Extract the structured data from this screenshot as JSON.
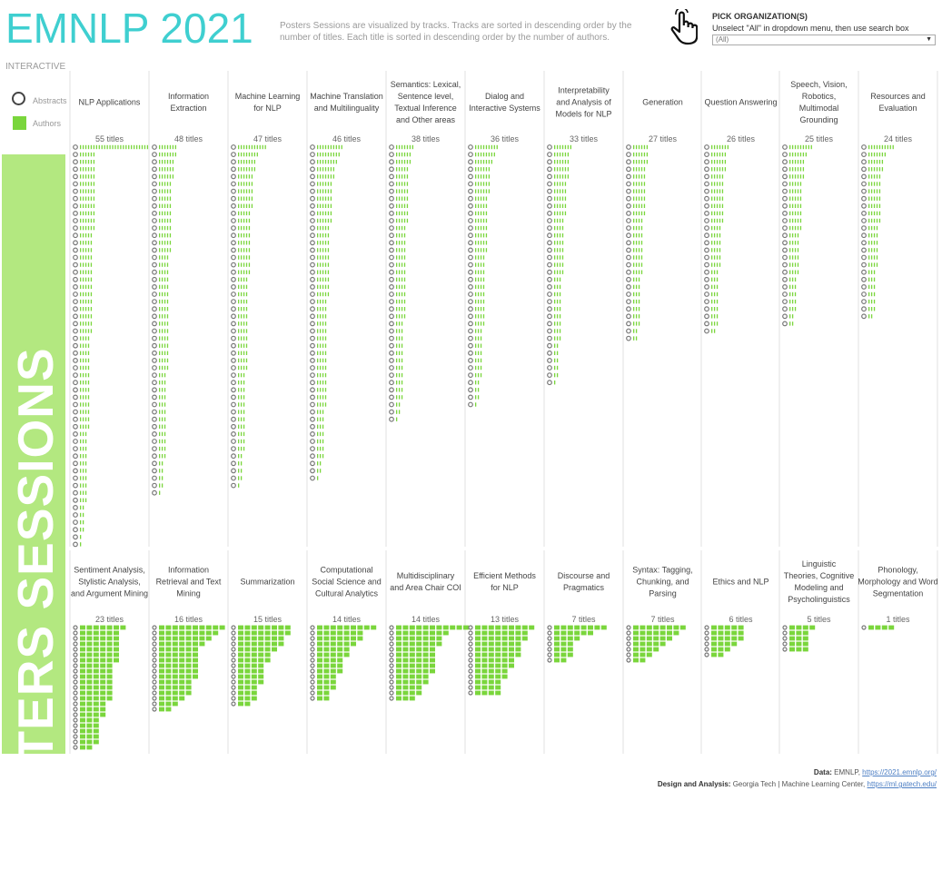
{
  "header": {
    "title": "EMNLP 2021",
    "subtitle": "Posters Sessions are visualized by tracks. Tracks are sorted in descending order by the number of titles. Each title is sorted in descending order by the number of authors."
  },
  "filter": {
    "pick_label": "PICK ORGANIZATION(S)",
    "hint": "Unselect \"All\" in dropdown menu, then use search box",
    "selected": "(All)",
    "icon": "hand-pointer-icon"
  },
  "sidebar": {
    "interactive_label": "INTERACTIVE",
    "banner_text": "POSTERS SESSIONS"
  },
  "legend": {
    "abstracts_label": "Abstracts",
    "authors_label": "Authors",
    "author_color": "#7ad63c",
    "abstract_color": "#777777"
  },
  "footer": {
    "data_label": "Data:",
    "data_text": "EMNLP,",
    "data_link": "https://2021.emnlp.org/",
    "design_label": "Design and Analysis:",
    "design_text": "Georgia Tech | Machine Learning Center,",
    "design_link": "https://ml.gatech.edu/"
  },
  "chart_data": {
    "type": "bar",
    "description_unit": "titles per track; each title row shows author count",
    "tracks": [
      {
        "name": "NLP Applications",
        "titles_label": "55 titles",
        "titles": 55,
        "authors": [
          26,
          6,
          6,
          6,
          6,
          6,
          6,
          6,
          6,
          6,
          6,
          6,
          5,
          5,
          5,
          5,
          5,
          5,
          5,
          5,
          5,
          5,
          5,
          5,
          5,
          5,
          4,
          4,
          4,
          4,
          4,
          4,
          4,
          4,
          4,
          4,
          4,
          4,
          4,
          3,
          3,
          3,
          3,
          3,
          3,
          3,
          3,
          3,
          3,
          2,
          2,
          2,
          2,
          1,
          1
        ]
      },
      {
        "name": "Information Extraction",
        "titles_label": "48 titles",
        "titles": 48,
        "authors": [
          7,
          7,
          6,
          6,
          6,
          5,
          5,
          5,
          5,
          5,
          5,
          5,
          5,
          5,
          5,
          4,
          4,
          4,
          4,
          4,
          4,
          4,
          4,
          4,
          4,
          4,
          4,
          4,
          4,
          4,
          4,
          3,
          3,
          3,
          3,
          3,
          3,
          3,
          3,
          3,
          3,
          3,
          3,
          2,
          2,
          2,
          2,
          1
        ]
      },
      {
        "name": "Machine Learning for NLP",
        "titles_label": "47 titles",
        "titles": 47,
        "authors": [
          11,
          8,
          7,
          7,
          6,
          6,
          6,
          6,
          6,
          5,
          5,
          5,
          5,
          5,
          5,
          5,
          5,
          5,
          4,
          4,
          4,
          4,
          4,
          4,
          4,
          4,
          4,
          4,
          4,
          4,
          4,
          3,
          3,
          3,
          3,
          3,
          3,
          3,
          3,
          3,
          3,
          3,
          2,
          2,
          2,
          2,
          1
        ]
      },
      {
        "name": "Machine Translation and Multilinguality",
        "titles_label": "46 titles",
        "titles": 46,
        "authors": [
          10,
          9,
          8,
          7,
          7,
          6,
          6,
          6,
          6,
          6,
          6,
          5,
          5,
          5,
          5,
          5,
          5,
          5,
          5,
          5,
          5,
          4,
          4,
          4,
          4,
          4,
          4,
          4,
          4,
          4,
          4,
          4,
          4,
          4,
          4,
          4,
          3,
          3,
          3,
          3,
          3,
          3,
          3,
          2,
          2,
          1
        ]
      },
      {
        "name": "Semantics: Lexical, Sentence level, Textual Inference and Other areas",
        "titles_label": "38 titles",
        "titles": 38,
        "authors": [
          7,
          6,
          6,
          5,
          5,
          5,
          5,
          5,
          5,
          5,
          5,
          4,
          4,
          4,
          4,
          4,
          4,
          4,
          4,
          4,
          4,
          4,
          4,
          4,
          3,
          3,
          3,
          3,
          3,
          3,
          3,
          3,
          3,
          3,
          3,
          2,
          2,
          1
        ]
      },
      {
        "name": "Dialog and Interactive Systems",
        "titles_label": "36 titles",
        "titles": 36,
        "authors": [
          9,
          8,
          7,
          6,
          6,
          6,
          6,
          5,
          5,
          5,
          5,
          5,
          5,
          5,
          5,
          4,
          4,
          4,
          4,
          4,
          4,
          4,
          4,
          4,
          4,
          3,
          3,
          3,
          3,
          3,
          3,
          3,
          2,
          2,
          2,
          1
        ]
      },
      {
        "name": "Interpretability and Analysis of Models for NLP",
        "titles_label": "33 titles",
        "titles": 33,
        "authors": [
          7,
          6,
          6,
          6,
          6,
          5,
          5,
          5,
          5,
          5,
          4,
          4,
          4,
          4,
          4,
          4,
          4,
          4,
          3,
          3,
          3,
          3,
          3,
          3,
          3,
          3,
          3,
          2,
          2,
          2,
          2,
          2,
          1
        ]
      },
      {
        "name": "Generation",
        "titles_label": "27 titles",
        "titles": 27,
        "authors": [
          6,
          6,
          6,
          5,
          5,
          5,
          5,
          5,
          5,
          5,
          4,
          4,
          4,
          4,
          4,
          4,
          4,
          4,
          3,
          3,
          3,
          3,
          3,
          3,
          3,
          2,
          2
        ]
      },
      {
        "name": "Question Answering",
        "titles_label": "26 titles",
        "titles": 26,
        "authors": [
          7,
          6,
          6,
          6,
          5,
          5,
          5,
          5,
          5,
          5,
          5,
          4,
          4,
          4,
          4,
          4,
          4,
          3,
          3,
          3,
          3,
          3,
          3,
          3,
          3,
          2
        ]
      },
      {
        "name": "Speech, Vision, Robotics, Multimodal Grounding",
        "titles_label": "25 titles",
        "titles": 25,
        "authors": [
          9,
          7,
          6,
          6,
          6,
          5,
          5,
          5,
          5,
          5,
          5,
          5,
          4,
          4,
          4,
          4,
          4,
          4,
          3,
          3,
          3,
          3,
          3,
          2,
          2
        ]
      },
      {
        "name": "Resources and Evaluation",
        "titles_label": "24 titles",
        "titles": 24,
        "authors": [
          10,
          7,
          6,
          6,
          5,
          5,
          5,
          5,
          5,
          5,
          5,
          4,
          4,
          4,
          4,
          4,
          4,
          3,
          3,
          3,
          3,
          3,
          3,
          2
        ]
      },
      {
        "name": "Sentiment Analysis, Stylistic Analysis, and Argument Mining",
        "titles_label": "23 titles",
        "titles": 23,
        "authors": [
          7,
          6,
          6,
          6,
          6,
          6,
          6,
          5,
          5,
          5,
          5,
          5,
          5,
          5,
          4,
          4,
          4,
          3,
          3,
          3,
          3,
          3,
          2
        ]
      },
      {
        "name": "Information Retrieval and Text Mining",
        "titles_label": "16 titles",
        "titles": 16,
        "authors": [
          10,
          9,
          8,
          7,
          6,
          6,
          6,
          6,
          6,
          6,
          5,
          5,
          5,
          4,
          3,
          2
        ]
      },
      {
        "name": "Summarization",
        "titles_label": "15 titles",
        "titles": 15,
        "authors": [
          8,
          8,
          7,
          7,
          6,
          5,
          5,
          4,
          4,
          4,
          4,
          3,
          3,
          3,
          2
        ]
      },
      {
        "name": "Computational Social Science and Cultural Analytics",
        "titles_label": "14 titles",
        "titles": 14,
        "authors": [
          9,
          7,
          7,
          6,
          5,
          5,
          4,
          4,
          4,
          3,
          3,
          3,
          2,
          2
        ]
      },
      {
        "name": "Multidisciplinary and Area Chair COI",
        "titles_label": "14 titles",
        "titles": 14,
        "authors": [
          11,
          8,
          7,
          7,
          6,
          6,
          6,
          6,
          6,
          5,
          5,
          4,
          4,
          3
        ]
      },
      {
        "name": "Efficient Methods for NLP",
        "titles_label": "13 titles",
        "titles": 13,
        "authors": [
          9,
          8,
          8,
          7,
          7,
          7,
          6,
          6,
          5,
          5,
          4,
          4,
          4
        ]
      },
      {
        "name": "Discourse and Pragmatics",
        "titles_label": "7 titles",
        "titles": 7,
        "authors": [
          8,
          6,
          4,
          3,
          3,
          3,
          2
        ]
      },
      {
        "name": "Syntax: Tagging, Chunking, and Parsing",
        "titles_label": "7 titles",
        "titles": 7,
        "authors": [
          8,
          7,
          6,
          5,
          4,
          3,
          2
        ]
      },
      {
        "name": "Ethics and NLP",
        "titles_label": "6 titles",
        "titles": 6,
        "authors": [
          5,
          5,
          5,
          4,
          3,
          2
        ]
      },
      {
        "name": "Linguistic Theories, Cognitive Modeling and Psycholinguistics",
        "titles_label": "5 titles",
        "titles": 5,
        "authors": [
          4,
          3,
          3,
          3,
          3
        ]
      },
      {
        "name": "Phonology, Morphology and Word Segmentation",
        "titles_label": "1 titles",
        "titles": 1,
        "authors": [
          4
        ]
      }
    ]
  }
}
